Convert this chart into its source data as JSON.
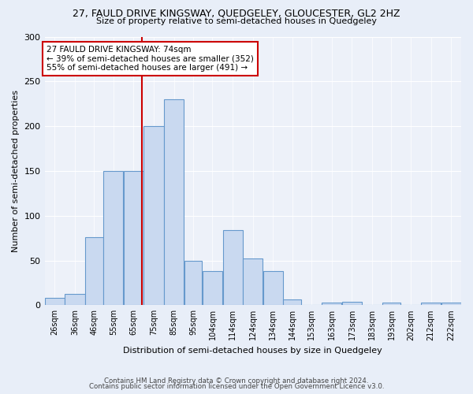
{
  "title1": "27, FAULD DRIVE KINGSWAY, QUEDGELEY, GLOUCESTER, GL2 2HZ",
  "title2": "Size of property relative to semi-detached houses in Quedgeley",
  "xlabel": "Distribution of semi-detached houses by size in Quedgeley",
  "ylabel": "Number of semi-detached properties",
  "bar_labels": [
    "26sqm",
    "36sqm",
    "46sqm",
    "55sqm",
    "65sqm",
    "75sqm",
    "85sqm",
    "95sqm",
    "104sqm",
    "114sqm",
    "124sqm",
    "134sqm",
    "144sqm",
    "153sqm",
    "163sqm",
    "173sqm",
    "183sqm",
    "193sqm",
    "202sqm",
    "212sqm",
    "222sqm"
  ],
  "bar_values": [
    8,
    13,
    76,
    150,
    150,
    200,
    230,
    50,
    38,
    84,
    52,
    38,
    6,
    0,
    3,
    4,
    0,
    3,
    0,
    3,
    3
  ],
  "bar_color": "#c9d9f0",
  "bar_edge_color": "#6699cc",
  "bin_edges": [
    26,
    36,
    46,
    55,
    65,
    75,
    85,
    95,
    104,
    114,
    124,
    134,
    144,
    153,
    163,
    173,
    183,
    193,
    202,
    212,
    222,
    232
  ],
  "vline_x": 74,
  "vline_color": "#cc0000",
  "annotation_text": "27 FAULD DRIVE KINGSWAY: 74sqm\n← 39% of semi-detached houses are smaller (352)\n55% of semi-detached houses are larger (491) →",
  "annotation_box_color": "#ffffff",
  "annotation_box_edge": "#cc0000",
  "ylim": [
    0,
    300
  ],
  "yticks": [
    0,
    50,
    100,
    150,
    200,
    250,
    300
  ],
  "footer1": "Contains HM Land Registry data © Crown copyright and database right 2024.",
  "footer2": "Contains public sector information licensed under the Open Government Licence v3.0.",
  "bg_color": "#e8eef8",
  "plot_bg_color": "#edf1f9"
}
